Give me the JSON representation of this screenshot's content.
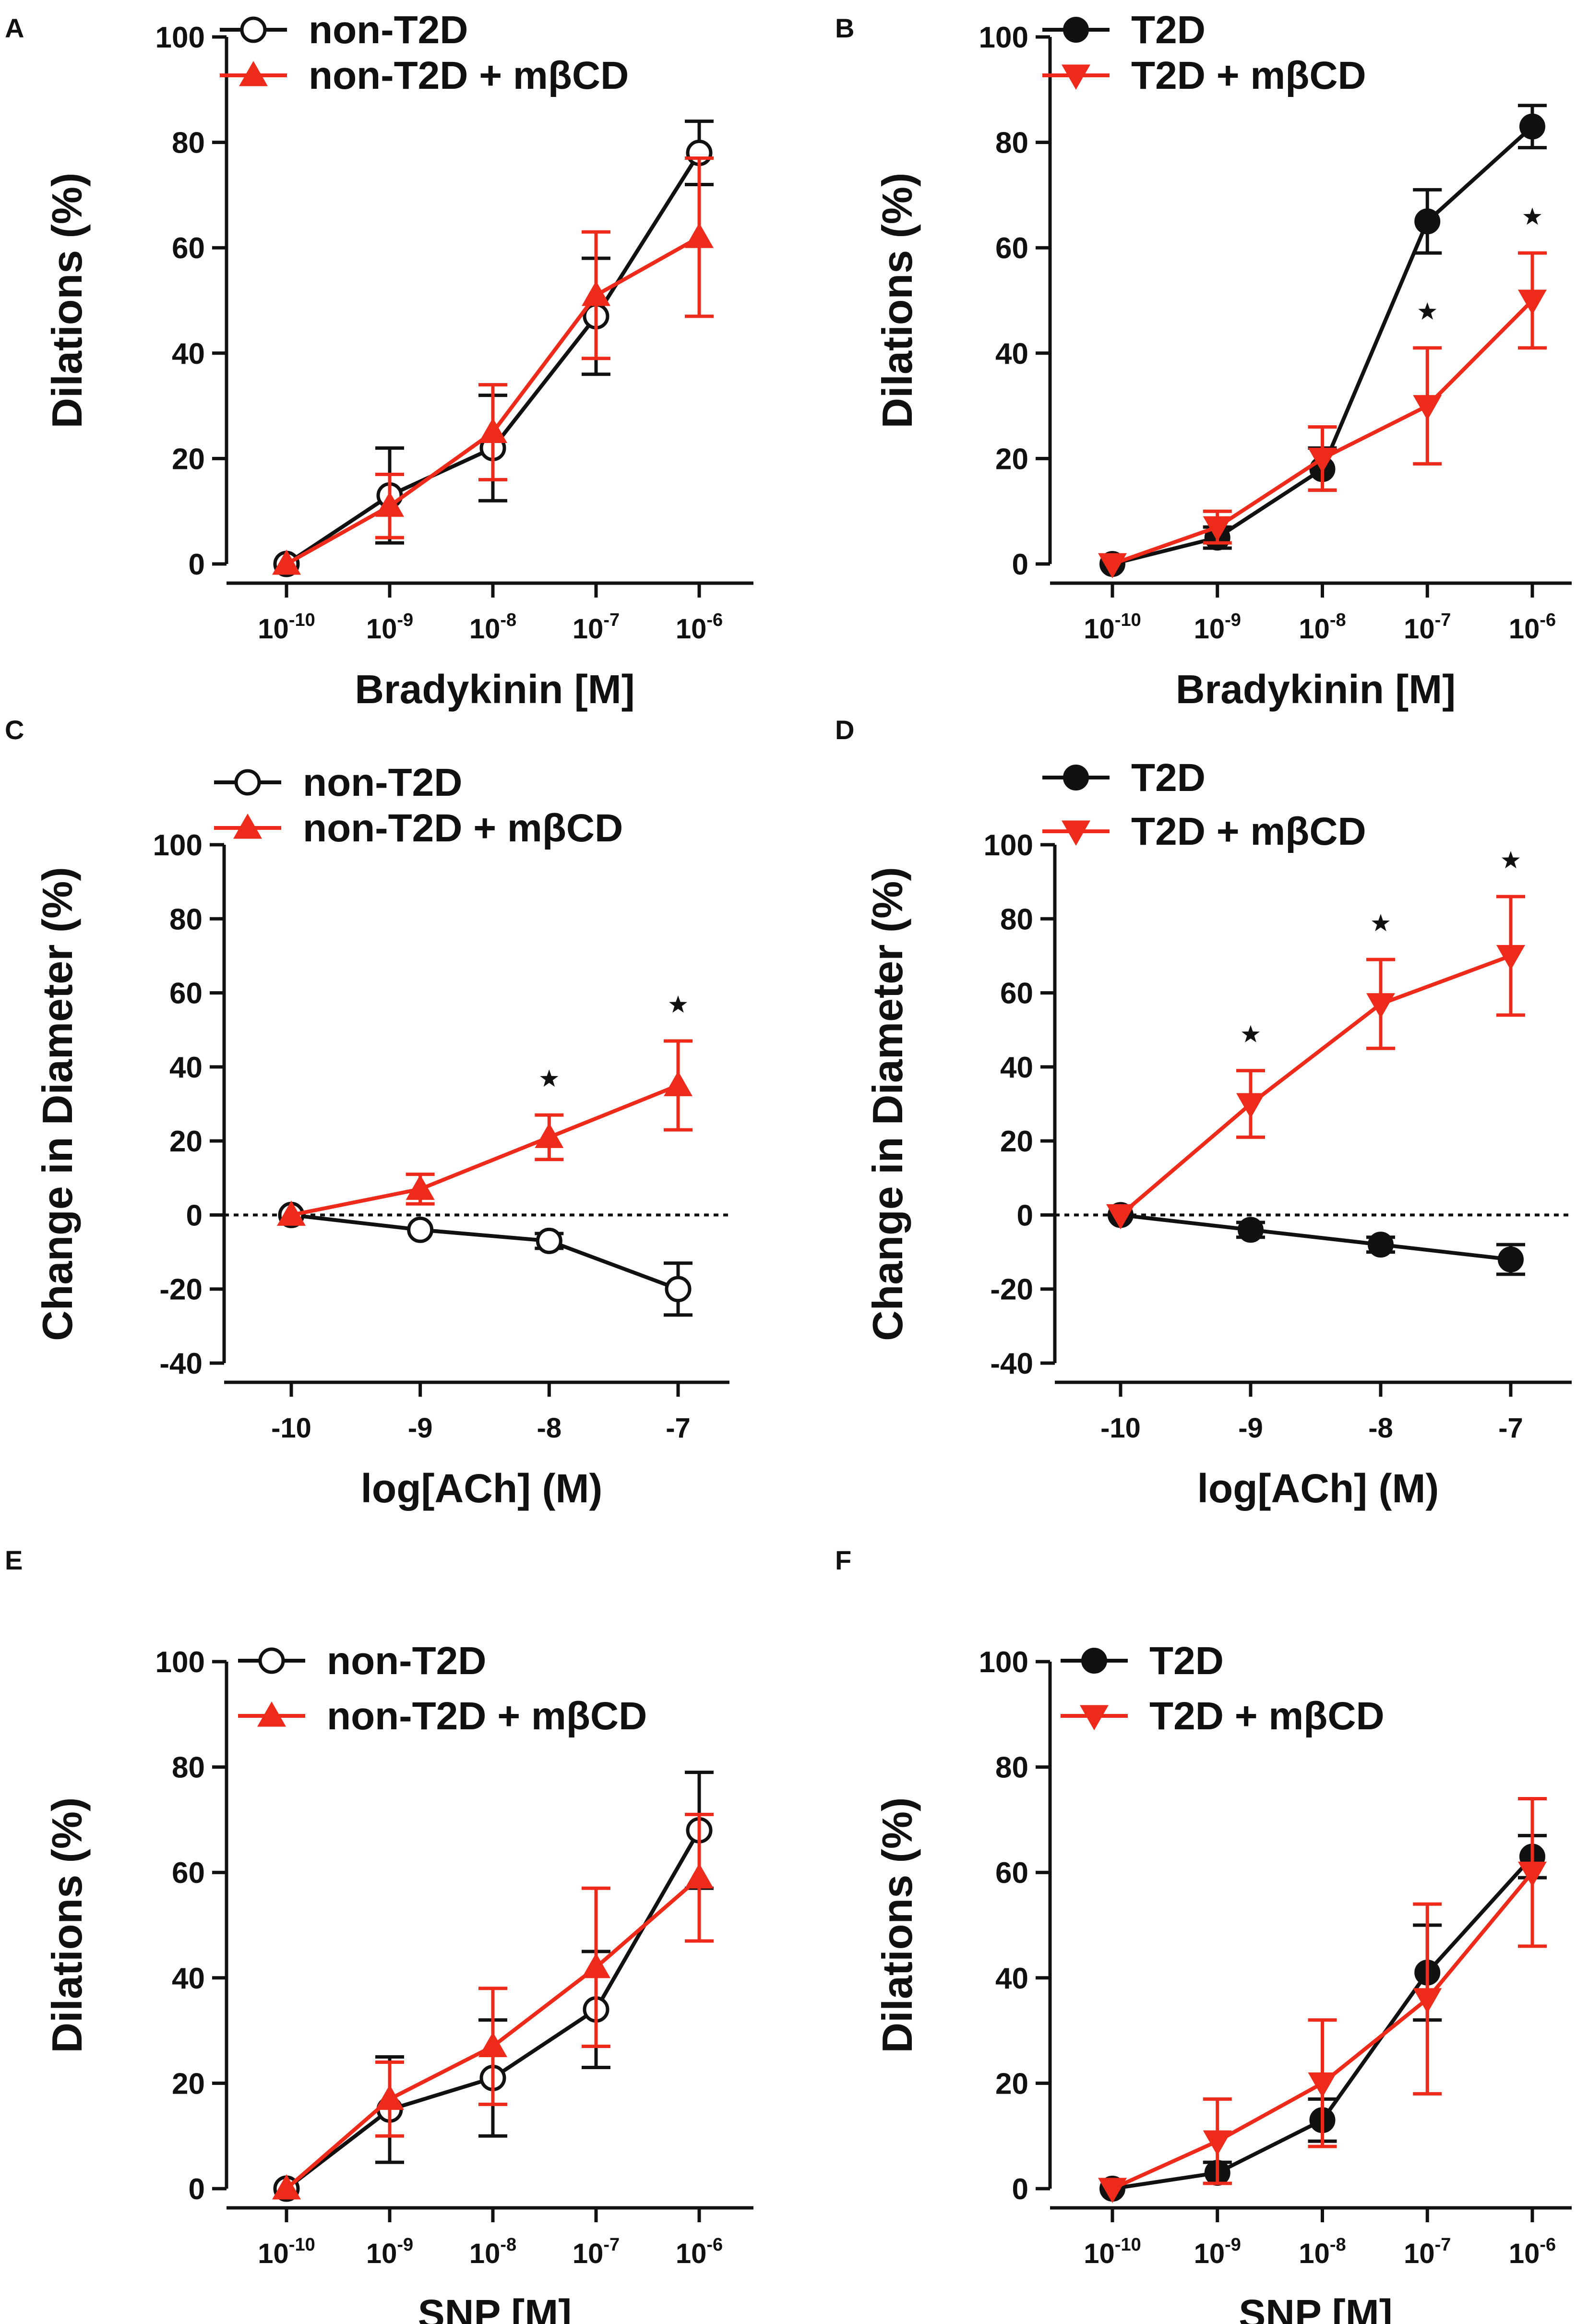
{
  "colors": {
    "black": "#111111",
    "red": "#ee2a1b"
  },
  "chart_data": [
    {
      "panel": "A",
      "type": "line",
      "xlabel": "Bradykinin [M]",
      "ylabel": "Dilations (%)",
      "xticks": [
        {
          "base": "10",
          "exp": "-10"
        },
        {
          "base": "10",
          "exp": "-9"
        },
        {
          "base": "10",
          "exp": "-8"
        },
        {
          "base": "10",
          "exp": "-7"
        },
        {
          "base": "10",
          "exp": "-6"
        }
      ],
      "yticks": [
        "0",
        "20",
        "40",
        "60",
        "80",
        "100"
      ],
      "ylim": [
        0,
        100
      ],
      "zero_line": false,
      "series": [
        {
          "name": "non-T2D",
          "color": "black",
          "marker": "circle-open",
          "values": [
            0,
            13,
            22,
            47,
            78
          ],
          "errors": [
            1,
            9,
            10,
            11,
            6
          ],
          "stars": [
            false,
            false,
            false,
            false,
            false
          ]
        },
        {
          "name": "non-T2D + mβCD",
          "color": "red",
          "marker": "triangle-up",
          "values": [
            0,
            11,
            25,
            51,
            62
          ],
          "errors": [
            1,
            6,
            9,
            12,
            15
          ],
          "stars": [
            false,
            false,
            false,
            false,
            false
          ]
        }
      ]
    },
    {
      "panel": "B",
      "type": "line",
      "xlabel": "Bradykinin [M]",
      "ylabel": "Dilations (%)",
      "xticks": [
        {
          "base": "10",
          "exp": "-10"
        },
        {
          "base": "10",
          "exp": "-9"
        },
        {
          "base": "10",
          "exp": "-8"
        },
        {
          "base": "10",
          "exp": "-7"
        },
        {
          "base": "10",
          "exp": "-6"
        }
      ],
      "yticks": [
        "0",
        "20",
        "40",
        "60",
        "80",
        "100"
      ],
      "ylim": [
        0,
        100
      ],
      "zero_line": false,
      "series": [
        {
          "name": "T2D",
          "color": "black",
          "marker": "circle-filled",
          "values": [
            0,
            5,
            18,
            65,
            83
          ],
          "errors": [
            1,
            2,
            4,
            6,
            4
          ],
          "stars": [
            false,
            false,
            false,
            false,
            false
          ]
        },
        {
          "name": "T2D + mβCD",
          "color": "red",
          "marker": "triangle-down",
          "values": [
            0,
            7,
            20,
            30,
            50
          ],
          "errors": [
            1,
            3,
            6,
            11,
            9
          ],
          "stars": [
            false,
            false,
            false,
            true,
            true
          ]
        }
      ]
    },
    {
      "panel": "C",
      "type": "line",
      "xlabel": "log[ACh] (M)",
      "ylabel": "Change in Diameter (%)",
      "xticks": [
        {
          "base": "-10",
          "exp": ""
        },
        {
          "base": "-9",
          "exp": ""
        },
        {
          "base": "-8",
          "exp": ""
        },
        {
          "base": "-7",
          "exp": ""
        }
      ],
      "yticks": [
        "-40",
        "-20",
        "0",
        "20",
        "40",
        "60",
        "80",
        "100"
      ],
      "ylim": [
        -40,
        100
      ],
      "zero_line": true,
      "series": [
        {
          "name": "non-T2D",
          "color": "black",
          "marker": "circle-open",
          "values": [
            0,
            -4,
            -7,
            -20
          ],
          "errors": [
            1,
            1,
            2,
            7
          ],
          "stars": [
            false,
            false,
            false,
            false
          ]
        },
        {
          "name": "non-T2D + mβCD",
          "color": "red",
          "marker": "triangle-up",
          "values": [
            0,
            7,
            21,
            35
          ],
          "errors": [
            1,
            4,
            6,
            12
          ],
          "stars": [
            false,
            false,
            true,
            true
          ]
        }
      ]
    },
    {
      "panel": "D",
      "type": "line",
      "xlabel": "log[ACh] (M)",
      "ylabel": "Change in Diameter (%)",
      "xticks": [
        {
          "base": "-10",
          "exp": ""
        },
        {
          "base": "-9",
          "exp": ""
        },
        {
          "base": "-8",
          "exp": ""
        },
        {
          "base": "-7",
          "exp": ""
        }
      ],
      "yticks": [
        "-40",
        "-20",
        "0",
        "20",
        "40",
        "60",
        "80",
        "100"
      ],
      "ylim": [
        -40,
        100
      ],
      "zero_line": true,
      "series": [
        {
          "name": "T2D",
          "color": "black",
          "marker": "circle-filled",
          "values": [
            0,
            -4,
            -8,
            -12
          ],
          "errors": [
            1,
            2,
            2,
            4
          ],
          "stars": [
            false,
            false,
            false,
            false
          ]
        },
        {
          "name": "T2D + mβCD",
          "color": "red",
          "marker": "triangle-down",
          "values": [
            0,
            30,
            57,
            70
          ],
          "errors": [
            1,
            9,
            12,
            16
          ],
          "stars": [
            false,
            true,
            true,
            true
          ]
        }
      ]
    },
    {
      "panel": "E",
      "type": "line",
      "xlabel": "SNP [M]",
      "ylabel": "Dilations (%)",
      "xticks": [
        {
          "base": "10",
          "exp": "-10"
        },
        {
          "base": "10",
          "exp": "-9"
        },
        {
          "base": "10",
          "exp": "-8"
        },
        {
          "base": "10",
          "exp": "-7"
        },
        {
          "base": "10",
          "exp": "-6"
        }
      ],
      "yticks": [
        "0",
        "20",
        "40",
        "60",
        "80",
        "100"
      ],
      "ylim": [
        0,
        100
      ],
      "zero_line": false,
      "series": [
        {
          "name": "non-T2D",
          "color": "black",
          "marker": "circle-open",
          "values": [
            0,
            15,
            21,
            34,
            68
          ],
          "errors": [
            1,
            10,
            11,
            11,
            11
          ],
          "stars": [
            false,
            false,
            false,
            false,
            false
          ]
        },
        {
          "name": "non-T2D + mβCD",
          "color": "red",
          "marker": "triangle-up",
          "values": [
            0,
            17,
            27,
            42,
            59
          ],
          "errors": [
            1,
            7,
            11,
            15,
            12
          ],
          "stars": [
            false,
            false,
            false,
            false,
            false
          ]
        }
      ]
    },
    {
      "panel": "F",
      "type": "line",
      "xlabel": "SNP [M]",
      "ylabel": "Dilations (%)",
      "xticks": [
        {
          "base": "10",
          "exp": "-10"
        },
        {
          "base": "10",
          "exp": "-9"
        },
        {
          "base": "10",
          "exp": "-8"
        },
        {
          "base": "10",
          "exp": "-7"
        },
        {
          "base": "10",
          "exp": "-6"
        }
      ],
      "yticks": [
        "0",
        "20",
        "40",
        "60",
        "80",
        "100"
      ],
      "ylim": [
        0,
        100
      ],
      "zero_line": false,
      "series": [
        {
          "name": "T2D",
          "color": "black",
          "marker": "circle-filled",
          "values": [
            0,
            3,
            13,
            41,
            63
          ],
          "errors": [
            1,
            2,
            4,
            9,
            4
          ],
          "stars": [
            false,
            false,
            false,
            false,
            false
          ]
        },
        {
          "name": "T2D + mβCD",
          "color": "red",
          "marker": "triangle-down",
          "values": [
            0,
            9,
            20,
            36,
            60
          ],
          "errors": [
            1,
            8,
            12,
            18,
            14
          ],
          "stars": [
            false,
            false,
            false,
            false,
            false
          ]
        }
      ]
    }
  ]
}
